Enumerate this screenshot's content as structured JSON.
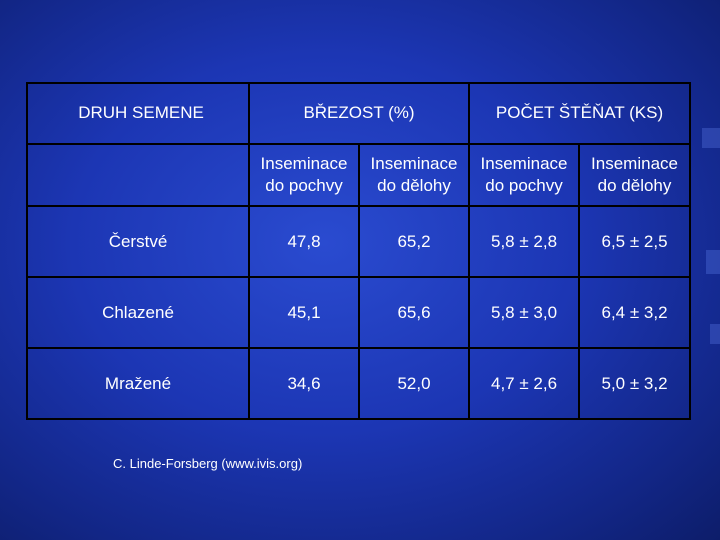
{
  "table": {
    "header": {
      "col1": "DRUH SEMENE",
      "group1": "BŘEZOST (%)",
      "group2": "POČET ŠTĚŇAT (KS)"
    },
    "subheaders": [
      {
        "line1": "Inseminace",
        "line2": "do pochvy"
      },
      {
        "line1": "Inseminace",
        "line2": "do dělohy"
      },
      {
        "line1": "Inseminace",
        "line2": "do pochvy"
      },
      {
        "line1": "Inseminace",
        "line2": "do dělohy"
      }
    ],
    "rows": [
      {
        "label": "Čerstvé",
        "v1": "47,8",
        "v2": "65,2",
        "v3": "5,8 ± 2,8",
        "v4": "6,5 ± 2,5"
      },
      {
        "label": "Chlazené",
        "v1": "45,1",
        "v2": "65,6",
        "v3": "5,8 ± 3,0",
        "v4": "6,4 ± 3,2"
      },
      {
        "label": "Mražené",
        "v1": "34,6",
        "v2": "52,0",
        "v3": "4,7 ± 2,6",
        "v4": "5,0 ± 3,2"
      }
    ]
  },
  "credit": "C. Linde-Forsberg (www.ivis.org)",
  "colors": {
    "background": "#1c36b4",
    "text": "#ffffff",
    "border": "#000000"
  }
}
